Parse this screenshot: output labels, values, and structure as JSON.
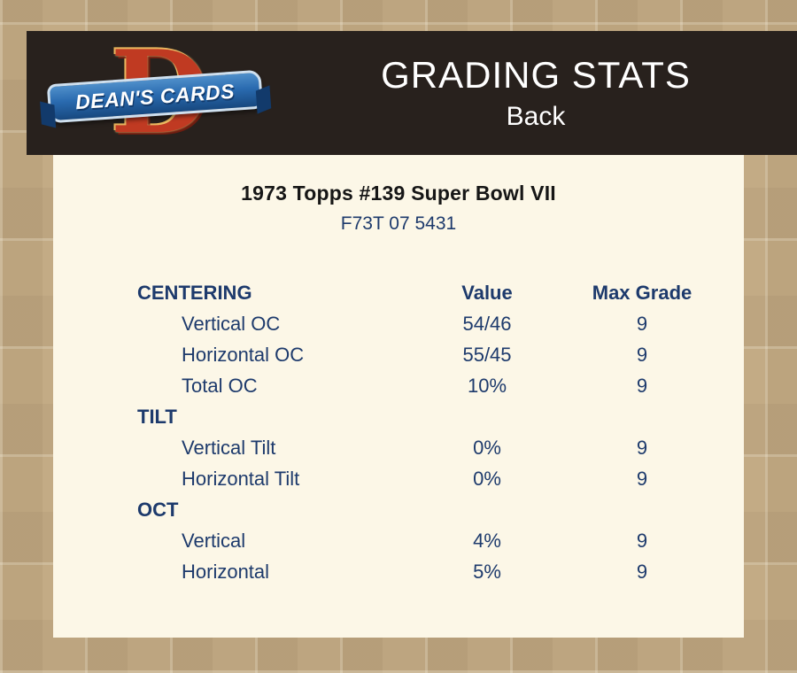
{
  "header": {
    "title": "GRADING STATS",
    "subtitle": "Back",
    "logo": {
      "letter": "D",
      "text": "DEAN'S CARDS"
    }
  },
  "card": {
    "title": "1973 Topps #139  Super Bowl VII",
    "code": "F73T 07 5431"
  },
  "table": {
    "value_header": "Value",
    "max_grade_header": "Max Grade",
    "sections": [
      {
        "label": "CENTERING",
        "rows": [
          {
            "name": "Vertical OC",
            "value": "54/46",
            "max": "9"
          },
          {
            "name": "Horizontal OC",
            "value": "55/45",
            "max": "9"
          },
          {
            "name": "Total OC",
            "value": "10%",
            "max": "9"
          }
        ]
      },
      {
        "label": "TILT",
        "rows": [
          {
            "name": "Vertical Tilt",
            "value": "0%",
            "max": "9"
          },
          {
            "name": "Horizontal Tilt",
            "value": "0%",
            "max": "9"
          }
        ]
      },
      {
        "label": "OCT",
        "rows": [
          {
            "name": "Vertical",
            "value": "4%",
            "max": "9"
          },
          {
            "name": "Horizontal",
            "value": "5%",
            "max": "9"
          }
        ]
      }
    ]
  },
  "colors": {
    "page_bg": "#c3ab85",
    "header_bg": "#28211d",
    "panel_bg": "#fcf7e7",
    "text_navy": "#1d3a6c",
    "logo_red": "#c03a22",
    "logo_blue": "#17487f"
  }
}
